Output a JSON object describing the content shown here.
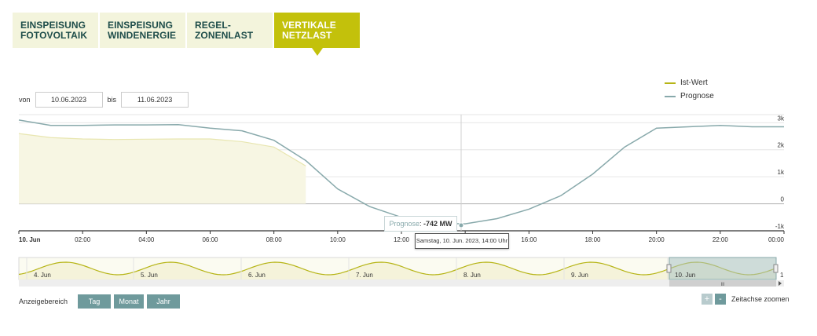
{
  "tabs": [
    {
      "line1": "EINSPEISUNG",
      "line2": "FOTOVOLTAIK"
    },
    {
      "line1": "EINSPEISUNG",
      "line2": "WINDENERGIE"
    },
    {
      "line1": "REGEL-",
      "line2": "ZONENLAST"
    },
    {
      "line1": "VERTIKALE",
      "line2": "NETZLAST"
    }
  ],
  "legend": {
    "actual": "Ist-Wert",
    "forecast": "Prognose"
  },
  "range": {
    "from_label": "von",
    "from_value": "10.06.2023",
    "to_label": "bis",
    "to_value": "11.06.2023"
  },
  "tooltip": {
    "series": "Prognose",
    "value": "-742 MW",
    "date": "Samstag, 10. Jun. 2023, 14:00 Uhr"
  },
  "navigator": {
    "labels": [
      "4. Jun",
      "5. Jun",
      "6. Jun",
      "7. Jun",
      "8. Jun",
      "9. Jun",
      "10. Jun"
    ],
    "right_label": "1",
    "handle_label": "III"
  },
  "bottom": {
    "range_label": "Anzeigebereich",
    "buttons": [
      "Tag",
      "Monat",
      "Jahr"
    ],
    "zoom_plus": "+",
    "zoom_minus": "-",
    "zoom_label": "Zeitachse zoomen"
  },
  "colors": {
    "accent": "#c3c10b",
    "forecast": "#88a9ab",
    "actual": "#b6b415",
    "button": "#6f9a9c"
  },
  "chart_data": {
    "type": "area",
    "x": [
      "00:00",
      "01:00",
      "02:00",
      "03:00",
      "04:00",
      "05:00",
      "06:00",
      "07:00",
      "08:00",
      "09:00",
      "10:00",
      "11:00",
      "12:00",
      "13:00",
      "14:00",
      "15:00",
      "16:00",
      "17:00",
      "18:00",
      "19:00",
      "20:00",
      "21:00",
      "22:00",
      "23:00",
      "24:00"
    ],
    "x_tick_labels": [
      "10. Jun",
      "02:00",
      "04:00",
      "06:00",
      "08:00",
      "10:00",
      "12:00",
      "14:00",
      "16:00",
      "18:00",
      "20:00",
      "22:00",
      "00:00"
    ],
    "y_tick_labels": [
      "3k",
      "2k",
      "1k",
      "0",
      "-1k"
    ],
    "ylim": [
      -1000,
      3300
    ],
    "series": [
      {
        "name": "Prognose",
        "values": [
          3100,
          2900,
          2900,
          2920,
          2920,
          2930,
          2800,
          2700,
          2350,
          1600,
          550,
          -100,
          -500,
          -720,
          -742,
          -550,
          -200,
          300,
          1100,
          2100,
          2800,
          2850,
          2900,
          2850,
          2850
        ]
      },
      {
        "name": "Ist-Wert",
        "values": [
          2600,
          2450,
          2400,
          2380,
          2390,
          2400,
          2400,
          2300,
          2100,
          1400,
          null,
          null,
          null,
          null,
          null,
          null,
          null,
          null,
          null,
          null,
          null,
          null,
          null,
          null,
          null
        ]
      }
    ]
  }
}
